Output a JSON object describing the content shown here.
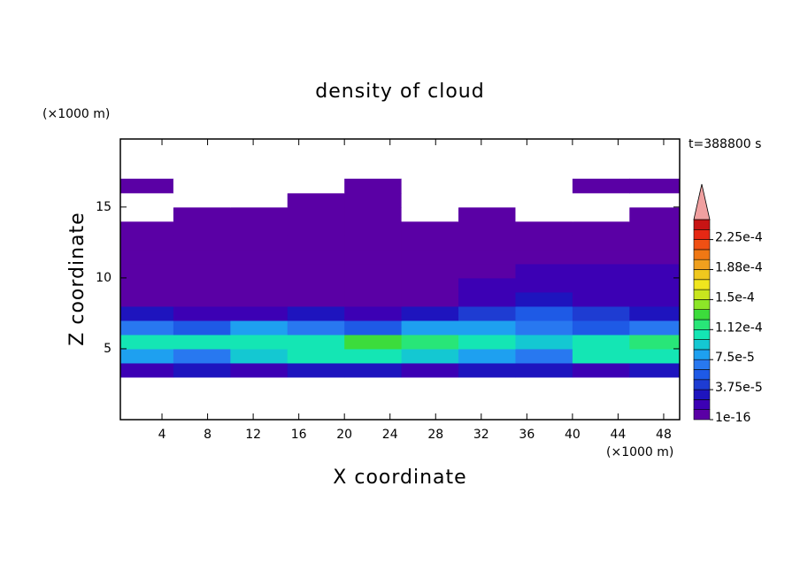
{
  "chart_data": {
    "type": "contour",
    "title": "density of cloud",
    "x_label": "X coordinate",
    "y_label": "Z coordinate",
    "x_unit": "(×1000 m)",
    "y_unit": "(×1000 m)",
    "annotation": "t=388800 s",
    "xlim": [
      0.35,
      49.4
    ],
    "ylim": [
      0,
      19.8
    ],
    "xticks": [
      4,
      8,
      12,
      16,
      20,
      24,
      28,
      32,
      36,
      40,
      44,
      48
    ],
    "yticks": [
      5,
      10,
      15
    ],
    "x": [
      2.5,
      7.5,
      12.5,
      17.5,
      22.5,
      27.5,
      32.5,
      37.5,
      42.5,
      47.5
    ],
    "z": [
      3.5,
      4.5,
      5.5,
      6.5,
      7.5,
      8.5,
      9.5,
      10.5,
      11.5,
      12.5,
      13.5,
      14.5,
      15.5,
      16.5
    ],
    "values": [
      [
        2e-05,
        3e-05,
        2e-05,
        3e-05,
        3e-05,
        2e-05,
        3e-05,
        3e-05,
        2e-05,
        3e-05
      ],
      [
        8e-05,
        7e-05,
        9e-05,
        0.000105,
        0.00011,
        9e-05,
        8e-05,
        7e-05,
        0.000105,
        0.00011
      ],
      [
        0.0001,
        0.000105,
        0.00011,
        0.0001,
        0.00013,
        0.00012,
        0.0001,
        9e-05,
        0.00011,
        0.00012
      ],
      [
        7e-05,
        6e-05,
        8e-05,
        7e-05,
        6e-05,
        8e-05,
        8e-05,
        7e-05,
        6e-05,
        7e-05
      ],
      [
        3e-05,
        2e-05,
        2e-05,
        3e-05,
        2e-05,
        3e-05,
        4e-05,
        5e-05,
        4e-05,
        3e-05
      ],
      [
        1e-05,
        5e-06,
        5e-06,
        1e-05,
        5e-06,
        1e-05,
        2e-05,
        3e-05,
        2e-05,
        1.5e-05
      ],
      [
        5e-06,
        5e-06,
        5e-06,
        5e-06,
        5e-06,
        5e-06,
        1.5e-05,
        2e-05,
        1.5e-05,
        1.5e-05
      ],
      [
        5e-06,
        5e-06,
        5e-06,
        5e-06,
        5e-06,
        5e-06,
        5e-06,
        1.5e-05,
        1.5e-05,
        1.5e-05
      ],
      [
        5e-06,
        5e-06,
        5e-06,
        5e-06,
        5e-06,
        5e-06,
        5e-06,
        5e-06,
        5e-06,
        5e-06
      ],
      [
        5e-06,
        5e-06,
        5e-06,
        5e-06,
        5e-06,
        5e-06,
        5e-06,
        5e-06,
        5e-06,
        5e-06
      ],
      [
        5e-06,
        5e-06,
        5e-06,
        5e-06,
        5e-06,
        5e-06,
        5e-06,
        5e-06,
        5e-06,
        5e-06
      ],
      [
        0,
        5e-06,
        5e-06,
        5e-06,
        5e-06,
        0,
        5e-06,
        0,
        0,
        5e-06
      ],
      [
        0,
        0,
        0,
        5e-06,
        5e-06,
        0,
        0,
        0,
        0,
        0
      ],
      [
        5e-06,
        0,
        0,
        0,
        5e-06,
        0,
        0,
        0,
        5e-06,
        5e-06
      ]
    ],
    "colorbar": {
      "levels": [
        1e-16,
        1.25e-05,
        2.5e-05,
        3.75e-05,
        5e-05,
        6.25e-05,
        7.5e-05,
        8.75e-05,
        0.0001,
        0.0001125,
        0.000125,
        0.0001375,
        0.00015,
        0.0001625,
        0.000175,
        0.0001875,
        0.0002,
        0.0002125,
        0.000225,
        0.0002375,
        0.00025
      ],
      "colors": [
        "#5a00a5",
        "#3c00b4",
        "#1e14be",
        "#1e3cd2",
        "#1e5ae6",
        "#2878f0",
        "#1ea0f0",
        "#14c8d2",
        "#14e6b4",
        "#28e678",
        "#3cdc3c",
        "#8ce628",
        "#c8e61e",
        "#f0e61e",
        "#f0c81e",
        "#f0a01e",
        "#f07814",
        "#f05014",
        "#e62814",
        "#c81414"
      ],
      "extend_color": "#f0a0a0",
      "ticks": [
        {
          "value": 1e-16,
          "label": "1e-16"
        },
        {
          "value": 3.75e-05,
          "label": "3.75e-5"
        },
        {
          "value": 7.5e-05,
          "label": "7.5e-5"
        },
        {
          "value": 0.0001125,
          "label": "1.12e-4"
        },
        {
          "value": 0.00015,
          "label": "1.5e-4"
        },
        {
          "value": 0.0001875,
          "label": "1.88e-4"
        },
        {
          "value": 0.000225,
          "label": "2.25e-4"
        }
      ]
    }
  }
}
